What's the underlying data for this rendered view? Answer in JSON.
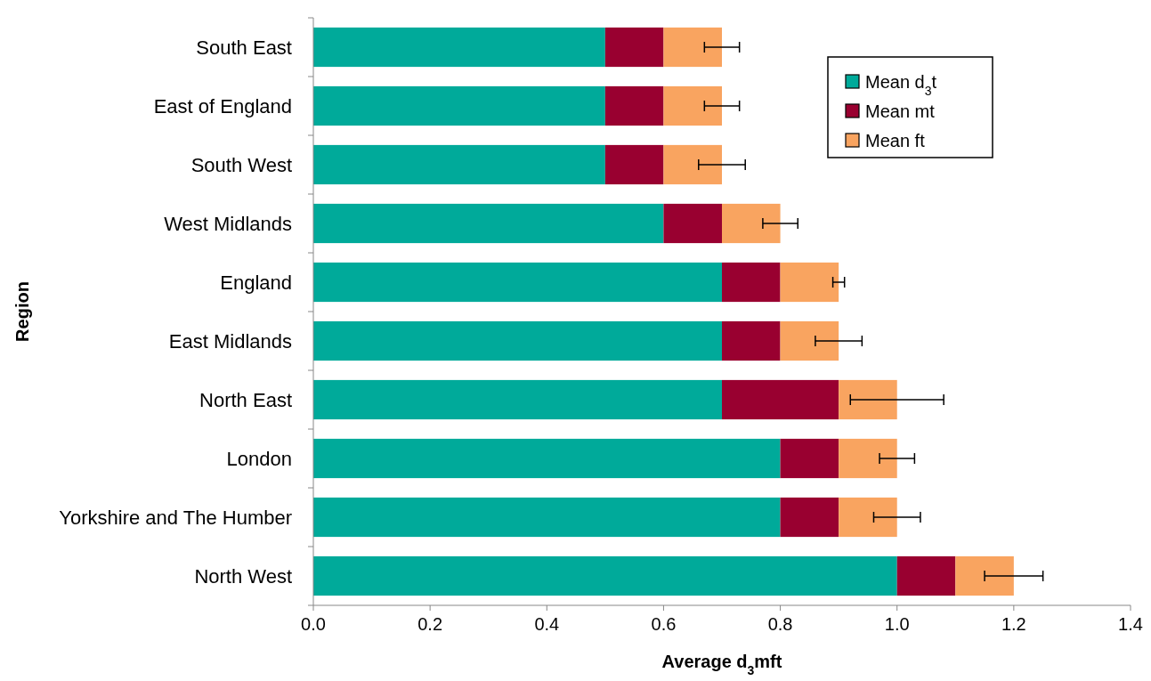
{
  "chart_data": {
    "type": "bar",
    "orientation": "horizontal",
    "stacked": true,
    "xlabel": "Average d$_{3}$mft",
    "ylabel": "Region",
    "categories": [
      "South East",
      "East of England",
      "South West",
      "West Midlands",
      "England",
      "East Midlands",
      "North East",
      "London",
      "Yorkshire and The Humber",
      "North West"
    ],
    "series": [
      {
        "name": "Mean d$_{3}$t",
        "color": "#00aa9a",
        "values": [
          0.5,
          0.5,
          0.5,
          0.6,
          0.7,
          0.7,
          0.7,
          0.8,
          0.8,
          1.0
        ]
      },
      {
        "name": "Mean mt",
        "color": "#990030",
        "values": [
          0.1,
          0.1,
          0.1,
          0.1,
          0.1,
          0.1,
          0.2,
          0.1,
          0.1,
          0.1
        ]
      },
      {
        "name": "Mean ft",
        "color": "#f9a460",
        "values": [
          0.1,
          0.1,
          0.1,
          0.1,
          0.1,
          0.1,
          0.1,
          0.1,
          0.1,
          0.1
        ],
        "errors": [
          [
            0.67,
            0.73
          ],
          [
            0.67,
            0.73
          ],
          [
            0.66,
            0.74
          ],
          [
            0.77,
            0.83
          ],
          [
            0.89,
            0.91
          ],
          [
            0.86,
            0.94
          ],
          [
            0.92,
            1.08
          ],
          [
            0.97,
            1.03
          ],
          [
            0.96,
            1.04
          ],
          [
            1.15,
            1.25
          ]
        ]
      }
    ],
    "xlim": [
      0,
      1.4
    ],
    "xticks": [
      {
        "value": 0,
        "label": "0.0"
      },
      {
        "value": 0.2,
        "label": "0.2"
      },
      {
        "value": 0.4,
        "label": "0.4"
      },
      {
        "value": 0.6,
        "label": "0.6"
      },
      {
        "value": 0.8,
        "label": "0.8"
      },
      {
        "value": 1,
        "label": "1.0"
      },
      {
        "value": 1.2,
        "label": "1.2"
      },
      {
        "value": 1.4,
        "label": "1.4"
      }
    ],
    "grid": false,
    "legend": "top right"
  }
}
